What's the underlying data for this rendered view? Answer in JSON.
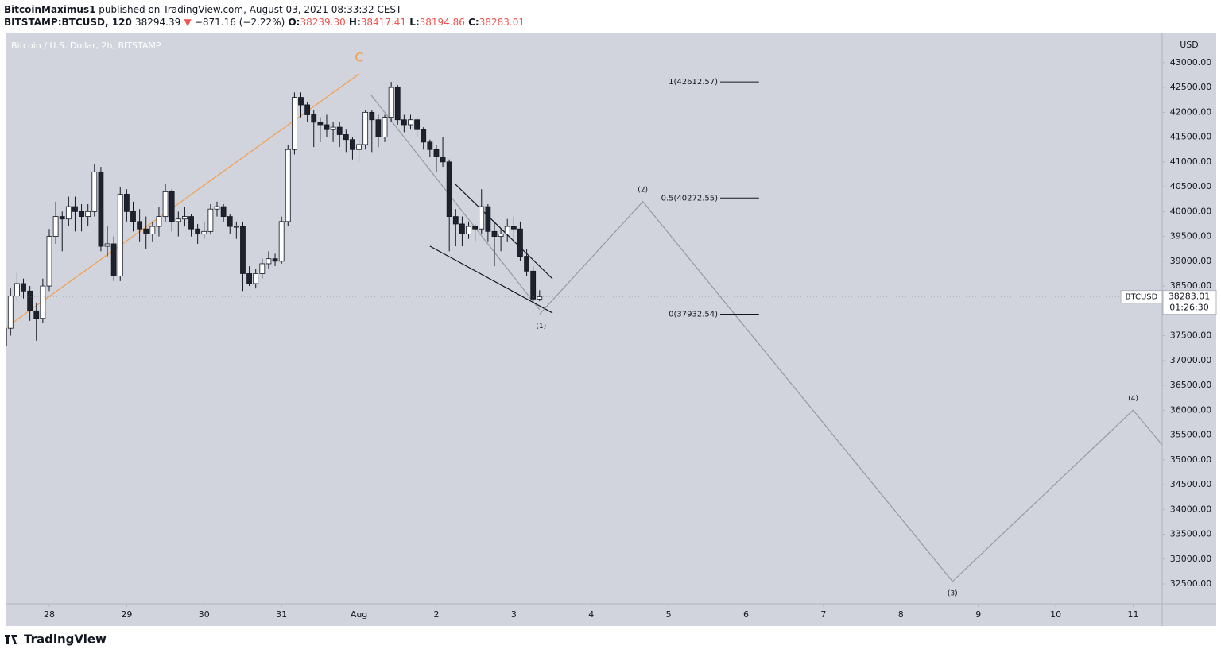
{
  "header": {
    "author": "BitcoinMaximus1",
    "published": "published on TradingView.com, August 03, 2021 08:33:32 CEST",
    "symbol": "BITSTAMP:BTCUSD, 120",
    "last": "38294.39",
    "arrow": "▼",
    "change": "−871.16 (−2.22%)",
    "o_key": "O:",
    "o_val": "38239.30",
    "h_key": "H:",
    "h_val": "38417.41",
    "l_key": "L:",
    "l_val": "38194.86",
    "c_key": "C:",
    "c_val": "38283.01"
  },
  "footer": {
    "brand": "TradingView"
  },
  "chart_data": {
    "type": "candlestick",
    "title": "Bitcoin / U.S. Dollar, 2h, BITSTAMP",
    "y_label": "USD",
    "up_color": "#ffffff",
    "down_color": "#1e222d",
    "background": "#d1d4dc",
    "xlim": [
      10.45,
      369
    ],
    "ylim": [
      32100,
      43590
    ],
    "xticks": [
      {
        "value": 24,
        "label": "28"
      },
      {
        "value": 48,
        "label": "29"
      },
      {
        "value": 72,
        "label": "30"
      },
      {
        "value": 96,
        "label": "31"
      },
      {
        "value": 120,
        "label": "Aug"
      },
      {
        "value": 144,
        "label": "2"
      },
      {
        "value": 168,
        "label": "3"
      },
      {
        "value": 192,
        "label": "4"
      },
      {
        "value": 216,
        "label": "5"
      },
      {
        "value": 240,
        "label": "6"
      },
      {
        "value": 264,
        "label": "7"
      },
      {
        "value": 288,
        "label": "8"
      },
      {
        "value": 312,
        "label": "9"
      },
      {
        "value": 336,
        "label": "10"
      },
      {
        "value": 360,
        "label": "11"
      }
    ],
    "yticks": [
      {
        "value": 32500,
        "label": "32500.00"
      },
      {
        "value": 33000,
        "label": "33000.00"
      },
      {
        "value": 33500,
        "label": "33500.00"
      },
      {
        "value": 34000,
        "label": "34000.00"
      },
      {
        "value": 34500,
        "label": "34500.00"
      },
      {
        "value": 35000,
        "label": "35000.00"
      },
      {
        "value": 35500,
        "label": "35500.00"
      },
      {
        "value": 36000,
        "label": "36000.00"
      },
      {
        "value": 36500,
        "label": "36500.00"
      },
      {
        "value": 37000,
        "label": "37000.00"
      },
      {
        "value": 37500,
        "label": "37500.00"
      },
      {
        "value": 38000,
        "label": "38000.00"
      },
      {
        "value": 38500,
        "label": "38500.00"
      },
      {
        "value": 39000,
        "label": "39000.00"
      },
      {
        "value": 39500,
        "label": "39500.00"
      },
      {
        "value": 40000,
        "label": "40000.00"
      },
      {
        "value": 40500,
        "label": "40500.00"
      },
      {
        "value": 41000,
        "label": "41000.00"
      },
      {
        "value": 41500,
        "label": "41500.00"
      },
      {
        "value": 42000,
        "label": "42000.00"
      },
      {
        "value": 42500,
        "label": "42500.00"
      },
      {
        "value": 43000,
        "label": "43000.00"
      }
    ],
    "x": [
      10,
      12,
      14,
      16,
      18,
      20,
      22,
      24,
      26,
      28,
      30,
      32,
      34,
      36,
      38,
      40,
      42,
      44,
      46,
      48,
      50,
      52,
      54,
      56,
      58,
      60,
      62,
      64,
      66,
      68,
      70,
      72,
      74,
      76,
      78,
      80,
      82,
      84,
      86,
      88,
      90,
      92,
      94,
      96,
      98,
      100,
      102,
      104,
      106,
      108,
      110,
      112,
      114,
      116,
      118,
      120,
      122,
      124,
      126,
      128,
      130,
      132,
      134,
      136,
      138,
      140,
      142,
      144,
      146,
      148,
      150,
      152,
      154,
      156,
      158,
      160,
      162,
      164,
      166,
      168,
      170,
      172,
      174,
      176
    ],
    "open": [
      37300,
      37650,
      38300,
      38550,
      38400,
      38000,
      37850,
      38500,
      39500,
      39900,
      39850,
      40100,
      40000,
      39900,
      40000,
      40800,
      39300,
      39350,
      38700,
      40350,
      40000,
      39800,
      39650,
      39550,
      39700,
      39900,
      40400,
      39800,
      39850,
      39900,
      39650,
      39550,
      39600,
      40050,
      40100,
      39900,
      39700,
      39700,
      38750,
      38550,
      38750,
      38950,
      39050,
      39000,
      39800,
      41250,
      42300,
      42150,
      41950,
      41800,
      41750,
      41650,
      41700,
      41550,
      41450,
      41250,
      41350,
      42000,
      41850,
      41500,
      41900,
      42500,
      41850,
      41750,
      41850,
      41650,
      41400,
      41250,
      41100,
      41000,
      39900,
      39750,
      39550,
      39700,
      39650,
      40100,
      39600,
      39500,
      39550,
      39700,
      39650,
      39100,
      38800,
      38239.3
    ],
    "high": [
      37900,
      38450,
      38800,
      38650,
      38500,
      38150,
      38650,
      39650,
      40200,
      40000,
      40300,
      40300,
      40150,
      40150,
      40950,
      40900,
      39700,
      39500,
      40500,
      40450,
      40200,
      40050,
      39900,
      39800,
      40100,
      40550,
      40450,
      40000,
      40100,
      39950,
      39750,
      39800,
      40150,
      40200,
      40150,
      39950,
      39800,
      39800,
      38900,
      38850,
      39050,
      39200,
      39150,
      39900,
      41350,
      42400,
      42400,
      42200,
      42050,
      41900,
      41950,
      41800,
      41800,
      41650,
      41500,
      41450,
      42050,
      42050,
      41950,
      41950,
      42612.57,
      42550,
      41950,
      41950,
      41900,
      41700,
      41450,
      41350,
      41500,
      41050,
      40050,
      39900,
      39800,
      39750,
      40450,
      40150,
      39800,
      39650,
      39850,
      39900,
      39800,
      39250,
      38900,
      38417.41
    ],
    "low": [
      37150,
      37500,
      38200,
      38250,
      37800,
      37400,
      37750,
      38400,
      39350,
      39200,
      39700,
      39600,
      39600,
      39700,
      39900,
      39200,
      39100,
      38600,
      38600,
      39800,
      39600,
      39400,
      39250,
      39400,
      39500,
      39800,
      39600,
      39500,
      39700,
      39500,
      39350,
      39450,
      39550,
      39900,
      39800,
      39550,
      39450,
      38400,
      38500,
      38450,
      38650,
      38850,
      38900,
      38950,
      39700,
      41150,
      41900,
      41800,
      41300,
      41400,
      41500,
      41400,
      41300,
      41200,
      41050,
      41000,
      41250,
      41200,
      41300,
      41400,
      41800,
      41750,
      41600,
      41650,
      41500,
      41250,
      41100,
      40800,
      40900,
      39200,
      39300,
      39300,
      39450,
      39400,
      39550,
      39400,
      38900,
      39200,
      39400,
      39400,
      39000,
      38700,
      38150,
      38194.86
    ],
    "close": [
      37650,
      38300,
      38550,
      38400,
      38000,
      37850,
      38500,
      39500,
      39900,
      39850,
      40100,
      40000,
      39900,
      40000,
      40800,
      39300,
      39350,
      38700,
      40350,
      40000,
      39800,
      39650,
      39550,
      39700,
      39900,
      40400,
      39800,
      39850,
      39900,
      39650,
      39550,
      39600,
      40050,
      40100,
      39900,
      39700,
      39700,
      38750,
      38550,
      38750,
      38950,
      39050,
      39000,
      39800,
      41250,
      42300,
      42150,
      41950,
      41800,
      41750,
      41650,
      41700,
      41550,
      41450,
      41250,
      41350,
      42000,
      41850,
      41500,
      41900,
      42500,
      41850,
      41750,
      41850,
      41650,
      41400,
      41250,
      41100,
      41000,
      39900,
      39750,
      39550,
      39700,
      39650,
      40100,
      39600,
      39500,
      39550,
      39700,
      39650,
      39100,
      38800,
      38239.3,
      38283.01
    ],
    "last_price": {
      "name": "BTCUSD",
      "value": 38283.01,
      "countdown": "01:26:30"
    },
    "wave": {
      "color": "#9598a1",
      "x": [
        176,
        208,
        304,
        360,
        369
      ],
      "values": [
        37932.54,
        40200,
        32550,
        36000,
        35300
      ],
      "labels": [
        "(1)",
        "(2)",
        "(3)",
        "(4)",
        null
      ]
    },
    "fib": {
      "color": "#131722",
      "x": [
        232,
        244
      ],
      "levels": [
        {
          "value": 42612.57,
          "label": "1(42612.57)"
        },
        {
          "value": 40272.55,
          "label": "0.5(40272.55)"
        },
        {
          "value": 37932.54,
          "label": "0(37932.54)"
        }
      ]
    },
    "lines": [
      {
        "color": "#f59d4c",
        "x": [
          10.7,
          120.1
        ],
        "values": [
          37670,
          42776
        ],
        "label": "C"
      },
      {
        "color": "#9598a1",
        "x": [
          123.8,
          176
        ],
        "values": [
          42344,
          38022
        ]
      },
      {
        "color": "#131722",
        "x": [
          149.9,
          180
        ],
        "values": [
          40551,
          38647
        ]
      },
      {
        "color": "#131722",
        "x": [
          142,
          180
        ],
        "values": [
          39303,
          37958
        ]
      }
    ]
  }
}
